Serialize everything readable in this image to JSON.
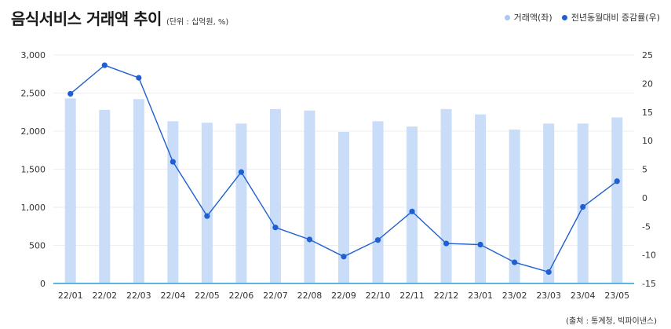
{
  "title": "음식서비스 거래액 추이",
  "unit_note": "(단위 : 십억원, %)",
  "source": "(출처 : 통계청, 빅파이낸스)",
  "colors": {
    "bar": "#c9ddf8",
    "line": "#1f5fd1",
    "axis": "#5ab4e6",
    "grid": "#eeeeee"
  },
  "chart_data": {
    "type": "bar",
    "categories": [
      "22/01",
      "22/02",
      "22/03",
      "22/04",
      "22/05",
      "22/06",
      "22/07",
      "22/08",
      "22/09",
      "22/10",
      "22/11",
      "22/12",
      "23/01",
      "23/02",
      "23/03",
      "23/04",
      "23/05"
    ],
    "series": [
      {
        "name": "거래액(좌)",
        "type": "bar",
        "axis": "left",
        "values": [
          2430,
          2280,
          2420,
          2130,
          2110,
          2100,
          2290,
          2270,
          1990,
          2130,
          2060,
          2290,
          2220,
          2020,
          2100,
          2100,
          2180
        ]
      },
      {
        "name": "전년동월대비 증감률(우)",
        "type": "line",
        "axis": "right",
        "values": [
          18.2,
          23.2,
          21.0,
          6.3,
          -3.2,
          4.5,
          -5.2,
          -7.3,
          -10.3,
          -7.4,
          -2.4,
          -8.0,
          -8.2,
          -11.3,
          -13.0,
          -1.6,
          2.9
        ]
      }
    ],
    "yleft": {
      "min": 0,
      "max": 3000,
      "ticks": [
        0,
        500,
        1000,
        1500,
        2000,
        2500,
        3000
      ],
      "tick_labels": [
        "0",
        "500",
        "1,000",
        "1,500",
        "2,000",
        "2,500",
        "3,000"
      ]
    },
    "yright": {
      "min": -15,
      "max": 25,
      "ticks": [
        -15,
        -10,
        -5,
        0,
        5,
        10,
        15,
        20,
        25
      ],
      "tick_labels": [
        "-15",
        "-10",
        "-5",
        "0",
        "5",
        "10",
        "15",
        "20",
        "25"
      ]
    },
    "legend_position": "top-right",
    "grid": true
  }
}
